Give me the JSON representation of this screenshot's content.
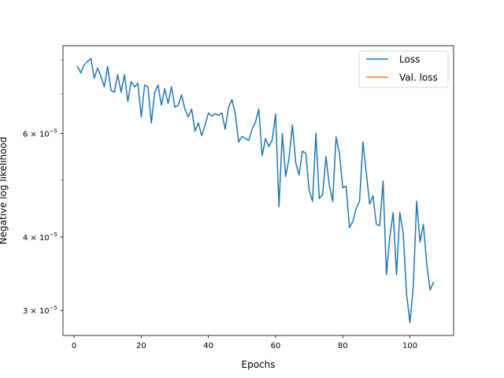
{
  "chart_data": {
    "type": "line",
    "title": "",
    "xlabel": "Epochs",
    "ylabel": "Negative log likelihood",
    "yscale": "log",
    "xlim": [
      -3.3,
      113
    ],
    "ylim": [
      2.72e-05,
      8.46e-05
    ],
    "xticks": [
      0,
      20,
      40,
      60,
      80,
      100
    ],
    "xtick_labels": [
      "0",
      "20",
      "40",
      "60",
      "80",
      "100"
    ],
    "yticks": [
      3e-05,
      4e-05,
      6e-05
    ],
    "ytick_labels": [
      {
        "mantissa": "3",
        "exponent": "−5"
      },
      {
        "mantissa": "4",
        "exponent": "−5"
      },
      {
        "mantissa": "6",
        "exponent": "−5"
      }
    ],
    "grid": false,
    "legend_position": "top-right",
    "series": [
      {
        "name": "Loss",
        "color": "#1f77b4",
        "x": [
          1,
          2,
          3,
          4,
          5,
          6,
          7,
          8,
          9,
          10,
          11,
          12,
          13,
          14,
          15,
          16,
          17,
          18,
          19,
          20,
          21,
          22,
          23,
          24,
          25,
          26,
          27,
          28,
          29,
          30,
          31,
          32,
          33,
          34,
          35,
          36,
          37,
          38,
          39,
          40,
          41,
          42,
          43,
          44,
          45,
          46,
          47,
          48,
          49,
          50,
          51,
          52,
          53,
          54,
          55,
          56,
          57,
          58,
          59,
          60,
          61,
          62,
          63,
          64,
          65,
          66,
          67,
          68,
          69,
          70,
          71,
          72,
          73,
          74,
          75,
          76,
          77,
          78,
          79,
          80,
          81,
          82,
          83,
          84,
          85,
          86,
          87,
          88,
          89,
          90,
          91,
          92,
          93,
          94,
          95,
          96,
          97,
          98,
          99,
          100,
          101,
          102,
          103,
          104,
          105,
          106,
          107
        ],
        "y": [
          7.8e-05,
          7.6e-05,
          7.85e-05,
          7.95e-05,
          8.05e-05,
          7.45e-05,
          7.75e-05,
          7.5e-05,
          7.2e-05,
          7.8e-05,
          7.1e-05,
          7.05e-05,
          7.55e-05,
          7.05e-05,
          7.55e-05,
          6.8e-05,
          7.35e-05,
          7.2e-05,
          7.3e-05,
          6.4e-05,
          7.25e-05,
          7.2e-05,
          6.25e-05,
          7.05e-05,
          7.25e-05,
          6.7e-05,
          7.15e-05,
          6.75e-05,
          7.2e-05,
          6.65e-05,
          6.7e-05,
          6.98e-05,
          6.6e-05,
          6.4e-05,
          6.6e-05,
          6.05e-05,
          6.25e-05,
          5.95e-05,
          6.2e-05,
          6.5e-05,
          6.42e-05,
          6.48e-05,
          6.44e-05,
          6.5e-05,
          6.1e-05,
          6.65e-05,
          6.85e-05,
          6.48e-05,
          5.8e-05,
          5.93e-05,
          5.88e-05,
          5.84e-05,
          6.1e-05,
          6.27e-05,
          6.6e-05,
          5.5e-05,
          5.88e-05,
          5.7e-05,
          5.85e-05,
          6.48e-05,
          4.5e-05,
          6e-05,
          5.07e-05,
          5.45e-05,
          6.2e-05,
          5.35e-05,
          5.1e-05,
          5.6e-05,
          5.55e-05,
          4.8e-05,
          4.6e-05,
          6e-05,
          4.65e-05,
          4.72e-05,
          5.48e-05,
          4.9e-05,
          4.6e-05,
          5.92e-05,
          5.55e-05,
          4.85e-05,
          4.88e-05,
          4.15e-05,
          4.25e-05,
          4.48e-05,
          4.6e-05,
          5.8e-05,
          5.15e-05,
          4.55e-05,
          4.7e-05,
          4.2e-05,
          4.18e-05,
          4.98e-05,
          3.45e-05,
          4e-05,
          4.4e-05,
          3.45e-05,
          4.4e-05,
          4.05e-05,
          3.2e-05,
          2.86e-05,
          3.3e-05,
          4.6e-05,
          3.92e-05,
          4.2e-05,
          3.6e-05,
          3.25e-05,
          3.35e-05
        ]
      },
      {
        "name": "Val. loss",
        "color": "#ff7f0e",
        "x": [],
        "y": []
      }
    ]
  }
}
